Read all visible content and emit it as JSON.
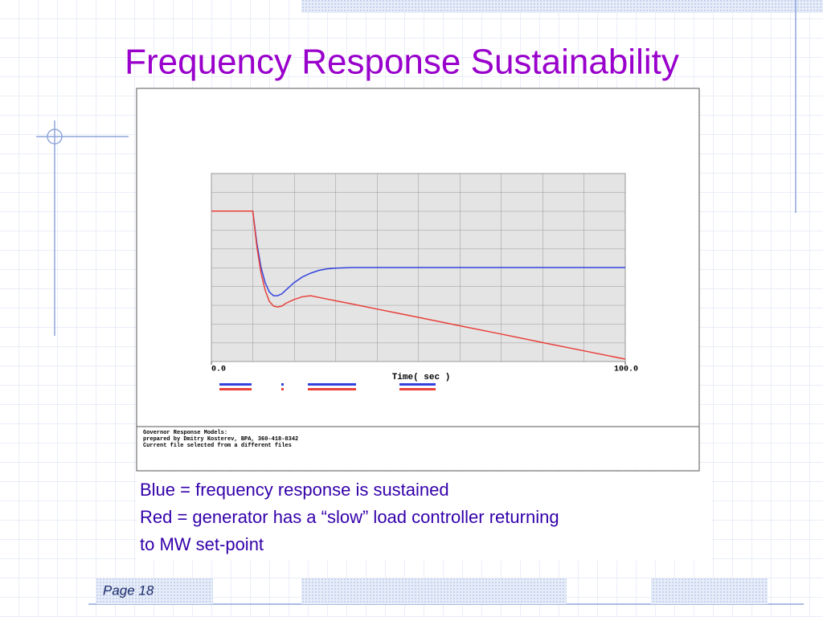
{
  "slide": {
    "title": "Frequency Response Sustainability",
    "body": [
      "Blue = frequency response is sustained",
      "Red =  generator has a “slow” load controller returning",
      "to MW set-point"
    ],
    "page": "Page 18"
  },
  "chart_data": {
    "type": "line",
    "x_label": "Time( sec )",
    "notes": [
      "Governor Response Models:",
      "prepared by Dmitry Kosterev, BPA, 360-418-8342",
      "Current file selected from a different files"
    ],
    "x": [
      0,
      10,
      11,
      12,
      13,
      14,
      15,
      16,
      17,
      18,
      20,
      22,
      24,
      26,
      28,
      30,
      34,
      40,
      50,
      60,
      70,
      80,
      90,
      100
    ],
    "xlim": [
      0,
      100
    ],
    "xticks": [
      {
        "value": 0,
        "label": "0.0"
      },
      {
        "value": 100,
        "label": "100.0"
      }
    ],
    "ylim": [
      0,
      10
    ],
    "series": [
      {
        "color": "#3344dd",
        "values": [
          8,
          8,
          6.3,
          5,
          4.2,
          3.7,
          3.5,
          3.5,
          3.6,
          3.8,
          4.2,
          4.5,
          4.7,
          4.85,
          4.93,
          4.97,
          5,
          5,
          5,
          5,
          5,
          5,
          5,
          5
        ]
      },
      {
        "color": "#e8403a",
        "values": [
          8,
          8,
          6.1,
          4.7,
          3.8,
          3.2,
          2.95,
          2.9,
          2.95,
          3.1,
          3.3,
          3.45,
          3.5,
          3.41,
          3.32,
          3.23,
          3.06,
          2.79,
          2.35,
          1.9,
          1.46,
          1.01,
          0.57,
          0.13
        ]
      }
    ]
  }
}
